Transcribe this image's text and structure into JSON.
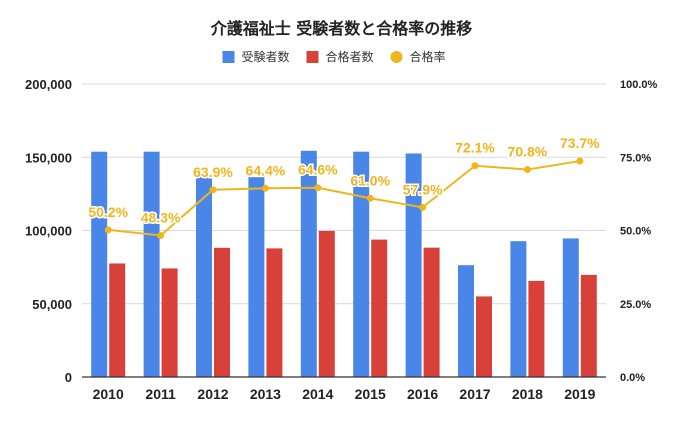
{
  "chart_data": {
    "type": "bar",
    "title": "介護福祉士 受験者数と合格率の推移",
    "categories": [
      "2010",
      "2011",
      "2012",
      "2013",
      "2014",
      "2015",
      "2016",
      "2017",
      "2018",
      "2019"
    ],
    "series": [
      {
        "name": "受験者数",
        "type": "bar",
        "axis": "left",
        "color": "#4a86e8",
        "values": [
          153800,
          153800,
          137900,
          136400,
          154400,
          153800,
          152600,
          76300,
          92700,
          94600
        ]
      },
      {
        "name": "合格者数",
        "type": "bar",
        "axis": "left",
        "color": "#d8413a",
        "values": [
          77500,
          74100,
          88200,
          87800,
          99700,
          93800,
          88300,
          55000,
          65600,
          69700
        ]
      },
      {
        "name": "合格率",
        "type": "line",
        "axis": "right",
        "color": "#f1b51c",
        "values": [
          50.2,
          48.3,
          63.9,
          64.4,
          64.6,
          61.0,
          57.9,
          72.1,
          70.8,
          73.7
        ],
        "labels": [
          "50.2%",
          "48.3%",
          "63.9%",
          "64.4%",
          "64.6%",
          "61.0%",
          "57.9%",
          "72.1%",
          "70.8%",
          "73.7%"
        ]
      }
    ],
    "y_left": {
      "ylim": [
        0,
        200000
      ],
      "ticks": [
        0,
        50000,
        100000,
        150000,
        200000
      ],
      "tick_labels": [
        "0",
        "50,000",
        "100,000",
        "150,000",
        "200,000"
      ]
    },
    "y_right": {
      "ylim": [
        0,
        100
      ],
      "ticks": [
        0,
        25,
        50,
        75,
        100
      ],
      "tick_labels": [
        "0.0%",
        "25.0%",
        "50.0%",
        "75.0%",
        "100.0%"
      ]
    },
    "legend_position": "top-center",
    "grid": "horizontal"
  }
}
